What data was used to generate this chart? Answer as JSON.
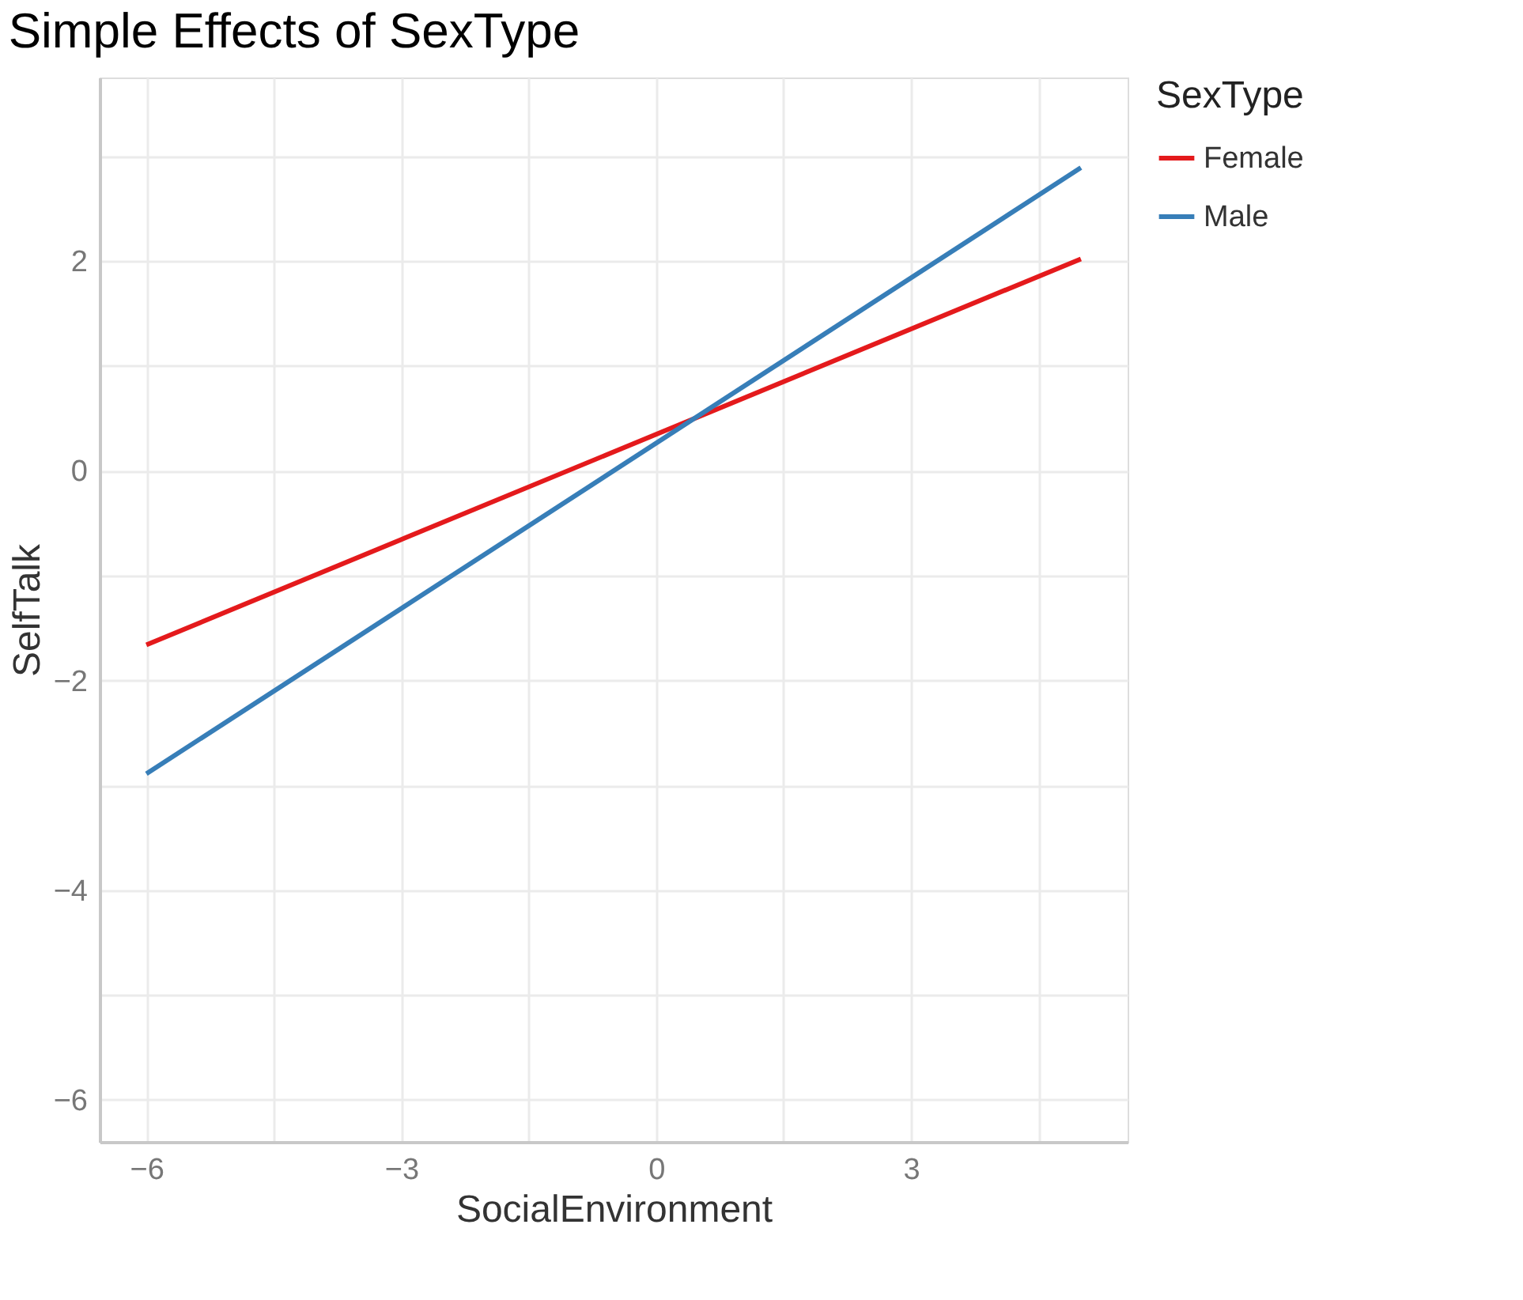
{
  "chart_data": {
    "type": "line",
    "title": "Simple Effects of SexType",
    "xlabel": "SocialEnvironment",
    "ylabel": "SelfTalk",
    "legend_title": "SexType",
    "x": [
      -6,
      5
    ],
    "series": [
      {
        "name": "Female",
        "color": "#e41a1c",
        "values": [
          -1.66,
          2.02
        ]
      },
      {
        "name": "Male",
        "color": "#377eb8",
        "values": [
          -2.89,
          2.89
        ]
      }
    ],
    "xlim": [
      -6.55,
      5.55
    ],
    "ylim": [
      -6.4,
      3.75
    ],
    "xticks": [
      -6,
      {
        "value": -4.5,
        "label": null
      },
      -3,
      {
        "value": -1.5,
        "label": null
      },
      0,
      {
        "value": 1.5,
        "label": null
      },
      3,
      {
        "value": 4.5,
        "label": null
      }
    ],
    "yticks": [
      -6,
      {
        "value": -5,
        "label": null
      },
      -4,
      {
        "value": -3,
        "label": null
      },
      -2,
      {
        "value": -1,
        "label": null
      },
      0,
      {
        "value": 1,
        "label": null
      },
      2,
      {
        "value": 3,
        "label": null
      }
    ],
    "grid": true,
    "legend": "right",
    "line_style": "solid",
    "marker": "none"
  }
}
